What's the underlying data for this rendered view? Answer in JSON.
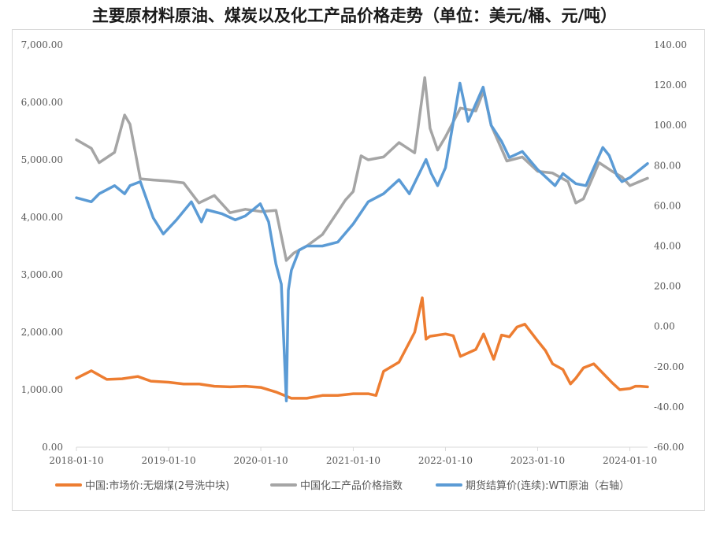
{
  "chart_data": {
    "type": "line",
    "title": "主要原材料原油、煤炭以及化工产品价格走势（单位：美元/桶、元/吨）",
    "x_ticks": [
      "2018-01-10",
      "2019-01-10",
      "2020-01-10",
      "2021-01-10",
      "2022-01-10",
      "2023-01-10",
      "2024-01-10"
    ],
    "xlim": [
      "2018-01-10",
      "2024-03-20"
    ],
    "left_axis": {
      "ylim": [
        0,
        7000
      ],
      "ticks": [
        "0.00",
        "1,000.00",
        "2,000.00",
        "3,000.00",
        "4,000.00",
        "5,000.00",
        "6,000.00",
        "7,000.00"
      ]
    },
    "right_axis": {
      "ylim": [
        -60,
        140
      ],
      "ticks": [
        "-60.00",
        "-40.00",
        "-20.00",
        "0.00",
        "20.00",
        "40.00",
        "60.00",
        "80.00",
        "100.00",
        "120.00",
        "140.00"
      ]
    },
    "legend_position": "bottom",
    "series": [
      {
        "name": "中国:市场价:无烟煤(2号洗中块)",
        "color": "#ED7D31",
        "axis": "left",
        "x": [
          "2018-01-10",
          "2018-03-10",
          "2018-05-10",
          "2018-07-10",
          "2018-09-10",
          "2018-11-01",
          "2019-01-10",
          "2019-03-10",
          "2019-05-10",
          "2019-07-10",
          "2019-09-10",
          "2019-11-10",
          "2020-01-10",
          "2020-03-10",
          "2020-05-10",
          "2020-07-10",
          "2020-09-10",
          "2020-11-10",
          "2021-01-10",
          "2021-03-10",
          "2021-04-10",
          "2021-05-10",
          "2021-07-10",
          "2021-09-10",
          "2021-10-10",
          "2021-10-25",
          "2021-11-10",
          "2022-01-10",
          "2022-02-10",
          "2022-03-10",
          "2022-05-10",
          "2022-06-10",
          "2022-07-20",
          "2022-08-20",
          "2022-09-20",
          "2022-10-20",
          "2022-11-20",
          "2023-01-10",
          "2023-02-10",
          "2023-03-10",
          "2023-04-20",
          "2023-05-20",
          "2023-06-10",
          "2023-07-10",
          "2023-08-20",
          "2023-10-01",
          "2023-11-01",
          "2023-12-01",
          "2024-01-10",
          "2024-02-01",
          "2024-02-20",
          "2024-03-20"
        ],
        "values": [
          1200,
          1330,
          1180,
          1190,
          1230,
          1150,
          1130,
          1100,
          1100,
          1060,
          1050,
          1060,
          1040,
          960,
          850,
          850,
          900,
          900,
          930,
          930,
          900,
          1320,
          1480,
          2000,
          2600,
          1880,
          1930,
          1970,
          1940,
          1580,
          1700,
          1970,
          1530,
          1950,
          1920,
          2090,
          2140,
          1850,
          1680,
          1450,
          1350,
          1100,
          1200,
          1380,
          1450,
          1260,
          1120,
          1000,
          1020,
          1060,
          1060,
          1050
        ]
      },
      {
        "name": "中国化工产品价格指数",
        "color": "#A5A5A5",
        "axis": "left",
        "x": [
          "2018-01-10",
          "2018-03-10",
          "2018-04-10",
          "2018-06-10",
          "2018-07-20",
          "2018-08-10",
          "2018-09-20",
          "2018-11-10",
          "2019-01-10",
          "2019-03-10",
          "2019-05-10",
          "2019-07-10",
          "2019-09-10",
          "2019-11-10",
          "2020-01-10",
          "2020-03-10",
          "2020-04-20",
          "2020-05-20",
          "2020-07-10",
          "2020-09-10",
          "2020-11-10",
          "2020-12-10",
          "2021-01-10",
          "2021-02-10",
          "2021-03-10",
          "2021-05-10",
          "2021-07-10",
          "2021-09-10",
          "2021-10-20",
          "2021-11-10",
          "2021-12-10",
          "2022-01-10",
          "2022-03-10",
          "2022-05-10",
          "2022-06-10",
          "2022-07-10",
          "2022-09-10",
          "2022-11-10",
          "2023-01-10",
          "2023-03-10",
          "2023-05-10",
          "2023-06-10",
          "2023-07-10",
          "2023-09-10",
          "2023-11-01",
          "2023-12-10",
          "2024-01-10",
          "2024-03-20"
        ],
        "values": [
          5350,
          5200,
          4950,
          5130,
          5780,
          5620,
          4670,
          4650,
          4630,
          4600,
          4250,
          4380,
          4080,
          4140,
          4100,
          4120,
          3250,
          3380,
          3500,
          3700,
          4100,
          4300,
          4450,
          5070,
          5000,
          5050,
          5300,
          5120,
          6430,
          5550,
          5170,
          5400,
          5900,
          5850,
          6200,
          5600,
          4980,
          5050,
          4800,
          4770,
          4620,
          4250,
          4320,
          4950,
          4800,
          4700,
          4550,
          4680
        ]
      },
      {
        "name": "期货结算价(连续):WTI原油（右轴）",
        "color": "#5B9BD5",
        "axis": "right",
        "x": [
          "2018-01-10",
          "2018-03-10",
          "2018-04-10",
          "2018-06-10",
          "2018-07-20",
          "2018-08-10",
          "2018-09-20",
          "2018-11-10",
          "2018-12-20",
          "2019-02-10",
          "2019-04-10",
          "2019-05-20",
          "2019-06-10",
          "2019-08-10",
          "2019-10-01",
          "2019-11-10",
          "2020-01-08",
          "2020-02-10",
          "2020-03-10",
          "2020-03-31",
          "2020-04-20",
          "2020-04-28",
          "2020-05-10",
          "2020-06-10",
          "2020-07-10",
          "2020-09-10",
          "2020-11-10",
          "2021-01-10",
          "2021-03-10",
          "2021-05-10",
          "2021-07-10",
          "2021-08-20",
          "2021-10-25",
          "2021-11-15",
          "2021-12-10",
          "2022-01-10",
          "2022-03-08",
          "2022-04-10",
          "2022-06-08",
          "2022-07-10",
          "2022-08-20",
          "2022-09-20",
          "2022-11-10",
          "2023-01-10",
          "2023-03-20",
          "2023-04-20",
          "2023-06-10",
          "2023-07-20",
          "2023-09-25",
          "2023-10-20",
          "2023-11-20",
          "2023-12-10",
          "2024-01-10",
          "2024-03-20"
        ],
        "values": [
          64,
          62,
          66,
          70,
          66,
          70,
          72,
          54,
          46,
          53,
          62,
          52,
          58,
          56,
          53,
          55,
          61,
          52,
          31,
          21,
          -37,
          18,
          28,
          38,
          40,
          40,
          42,
          51,
          62,
          66,
          73,
          66,
          83,
          76,
          70,
          79,
          121,
          102,
          119,
          100,
          92,
          84,
          87,
          78,
          70,
          76,
          71,
          70,
          89,
          85,
          75,
          72,
          74,
          81
        ]
      }
    ]
  }
}
